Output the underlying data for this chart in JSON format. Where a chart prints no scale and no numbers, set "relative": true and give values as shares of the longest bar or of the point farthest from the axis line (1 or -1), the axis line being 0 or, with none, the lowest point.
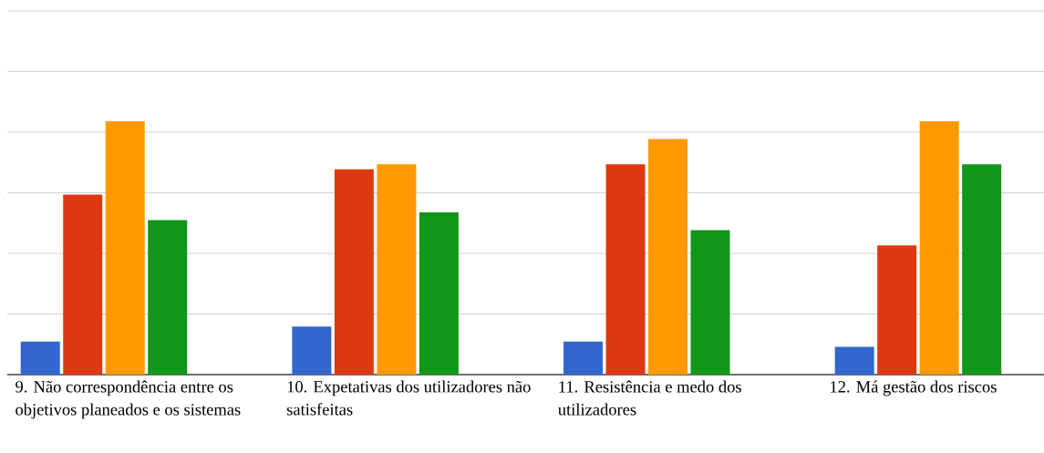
{
  "chart_data": {
    "type": "bar",
    "relative": true,
    "grid": "y",
    "categories": [
      "9. Não correspondência entre os objetivos planeados e os sistemas",
      "10. Expetativas dos utilizadores não satisfeitas",
      "11. Resistência e medo dos utilizadores",
      "12. Má gestão dos riscos"
    ],
    "series": [
      {
        "color": "#3366cc",
        "values": [
          0.13,
          0.19,
          0.13,
          0.11
        ]
      },
      {
        "color": "#dc3912",
        "values": [
          0.71,
          0.81,
          0.83,
          0.51
        ]
      },
      {
        "color": "#ff9900",
        "values": [
          1,
          0.83,
          0.93,
          1
        ]
      },
      {
        "color": "#109618",
        "values": [
          0.61,
          0.64,
          0.57,
          0.83
        ]
      }
    ]
  }
}
